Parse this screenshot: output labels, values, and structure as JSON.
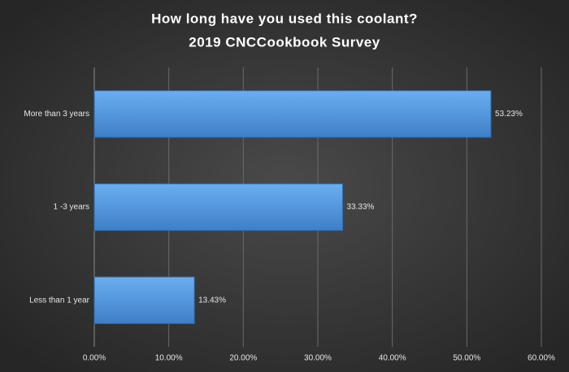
{
  "chart_data": {
    "type": "barh",
    "title": [
      "How long have you used this coolant?",
      "2019 CNCCookbook Survey"
    ],
    "categories": [
      "More than 3 years",
      "1 -3 years",
      "Less than 1 year"
    ],
    "values": [
      53.23,
      33.33,
      13.43
    ],
    "value_labels": [
      "53.23%",
      "33.33%",
      "13.43%"
    ],
    "color": "#4a90d9",
    "xlim": [
      0,
      60
    ],
    "xticks": [
      {
        "value": 0,
        "label": "0.00%"
      },
      {
        "value": 10,
        "label": "10.00%"
      },
      {
        "value": 20,
        "label": "20.00%"
      },
      {
        "value": 30,
        "label": "30.00%"
      },
      {
        "value": 40,
        "label": "40.00%"
      },
      {
        "value": 50,
        "label": "50.00%"
      },
      {
        "value": 60,
        "label": "60.00%"
      }
    ],
    "grid": true
  }
}
